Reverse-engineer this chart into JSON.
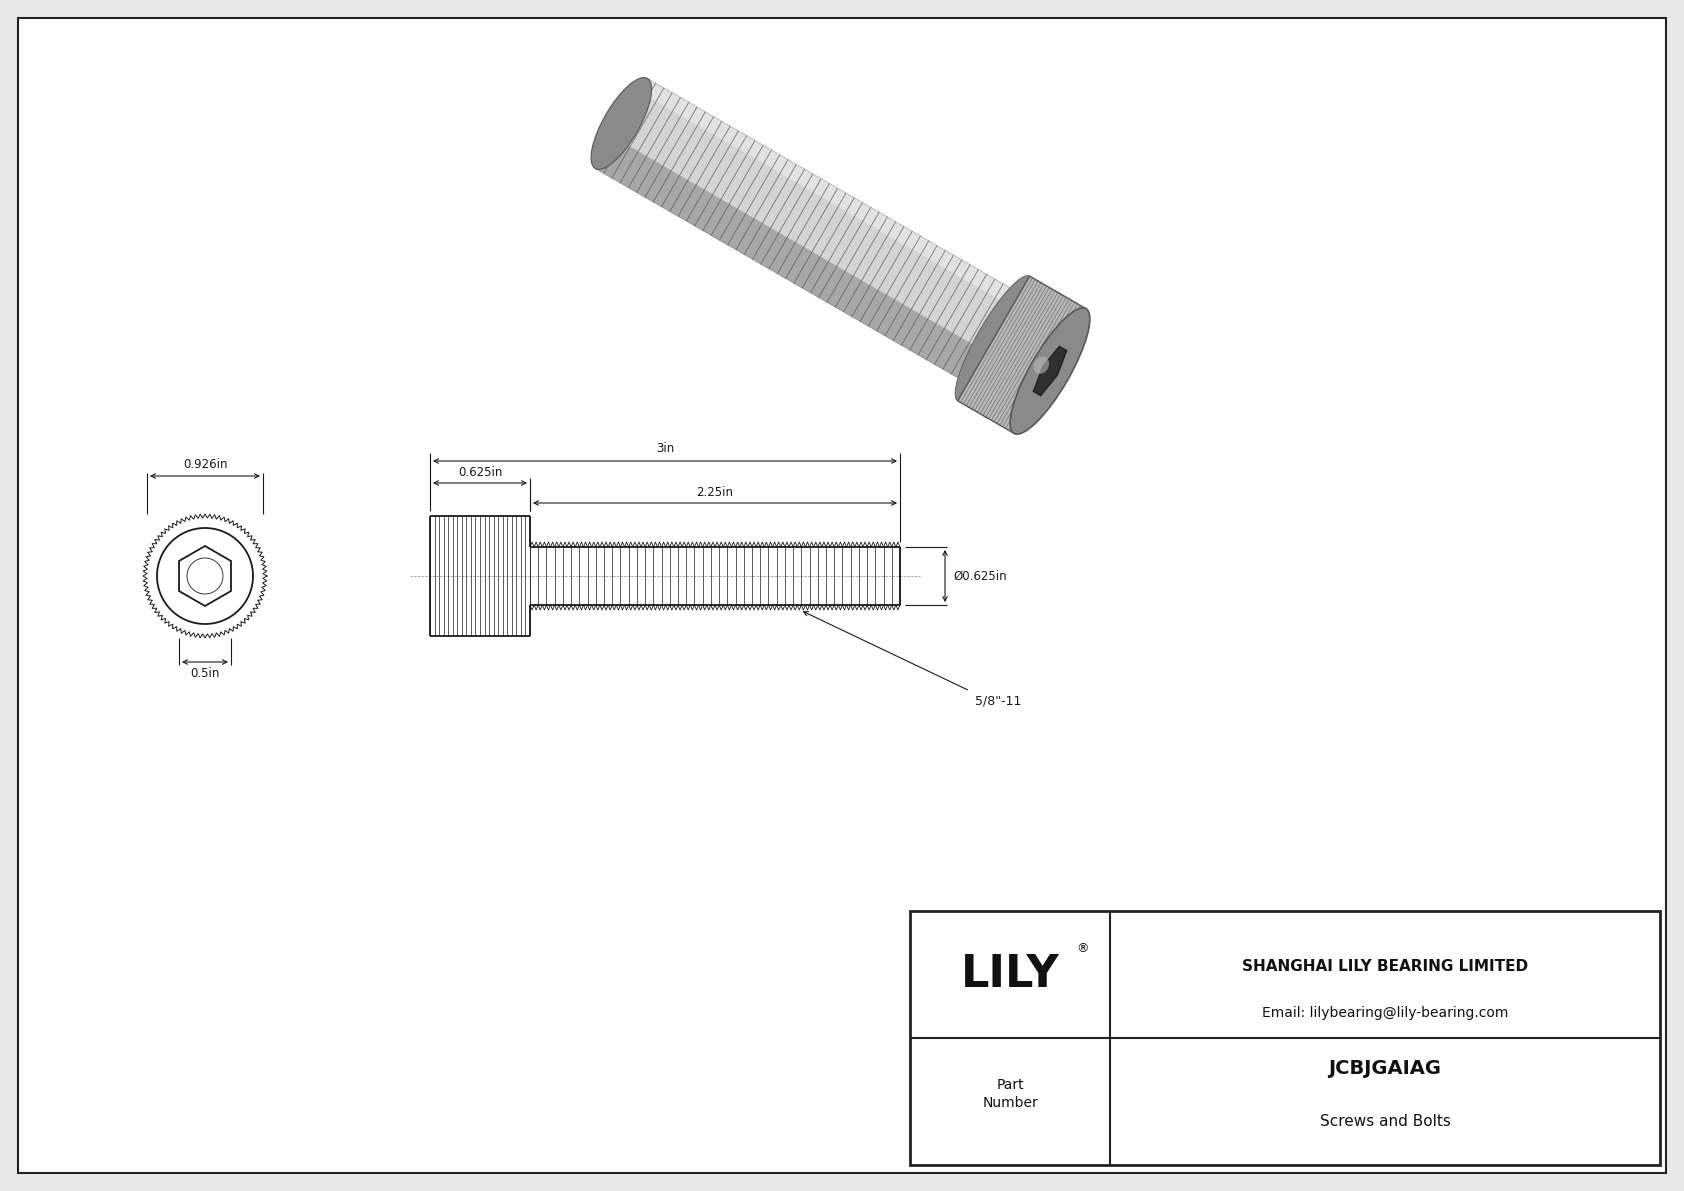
{
  "bg_color": "#e8e8e8",
  "border_color": "#222222",
  "line_color": "#1a1a1a",
  "dim_color": "#1a1a1a",
  "white": "#ffffff",
  "title": "JCBJGAIAG",
  "subtitle": "Screws and Bolts",
  "company": "SHANGHAI LILY BEARING LIMITED",
  "email": "Email: lilybearing@lily-bearing.com",
  "part_label_line1": "Part",
  "part_label_line2": "Number",
  "logo_text": "LILY",
  "logo_reg": "®",
  "dim_total_length": "3in",
  "dim_head_length": "0.625in",
  "dim_thread_length": "2.25in",
  "dim_head_width": "0.926in",
  "dim_hex_width": "0.5in",
  "dim_diameter": "Ø0.625in",
  "dim_thread_spec": "5/8\"-11",
  "fs_dim": 8.5,
  "fs_title": 14,
  "fs_subtitle": 11,
  "fs_company": 11,
  "fs_logo": 32,
  "fs_part": 10
}
